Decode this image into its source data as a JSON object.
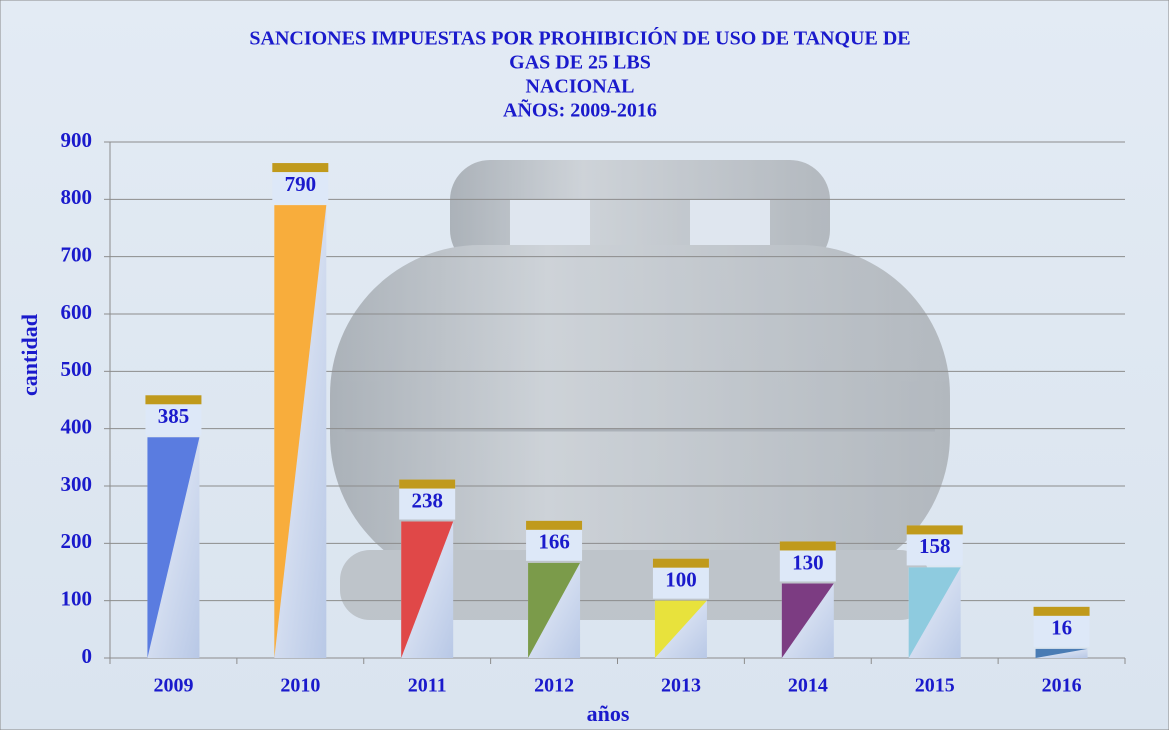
{
  "chart_data": {
    "type": "bar",
    "title": [
      "SANCIONES IMPUESTAS POR PROHIBICIÓN DE USO DE TANQUE DE",
      "GAS DE 25 LBS",
      "NACIONAL",
      "AÑOS: 2009-2016"
    ],
    "x_label": "años",
    "y_label": "cantidad",
    "categories": [
      "2009",
      "2010",
      "2011",
      "2012",
      "2013",
      "2014",
      "2015",
      "2016"
    ],
    "values": [
      385,
      790,
      238,
      166,
      100,
      130,
      158,
      16
    ],
    "colors": [
      "#5a7ce0",
      "#f8ad3c",
      "#e04848",
      "#7b9b4a",
      "#e8e23c",
      "#7c3c82",
      "#8ecbdf",
      "#4a7cb4"
    ],
    "ylim": [
      0,
      900
    ],
    "yticks": [
      0,
      100,
      200,
      300,
      400,
      500,
      600,
      700,
      800,
      900
    ],
    "grid": true
  }
}
